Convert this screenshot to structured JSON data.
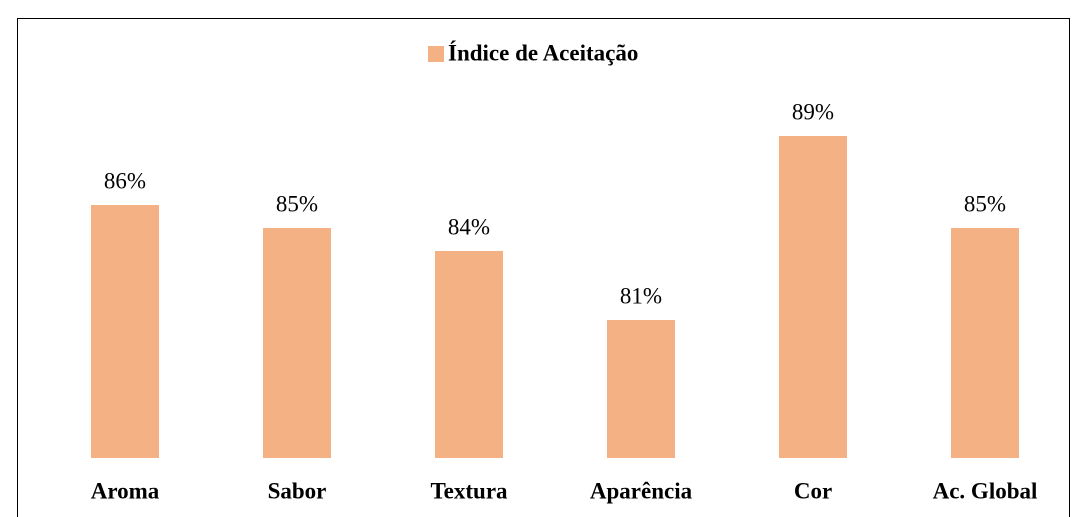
{
  "chart_data": {
    "type": "bar",
    "categories": [
      "Aroma",
      "Sabor",
      "Textura",
      "Aparência",
      "Cor",
      "Ac. Global"
    ],
    "series": [
      {
        "name": "Índice de Aceitação",
        "color": "#f4b183",
        "values": [
          86,
          85,
          84,
          81,
          89,
          85
        ],
        "value_labels": [
          "86%",
          "85%",
          "84%",
          "81%",
          "89%",
          "85%"
        ]
      }
    ],
    "ylim": [
      75,
      90
    ],
    "legend": "top"
  }
}
